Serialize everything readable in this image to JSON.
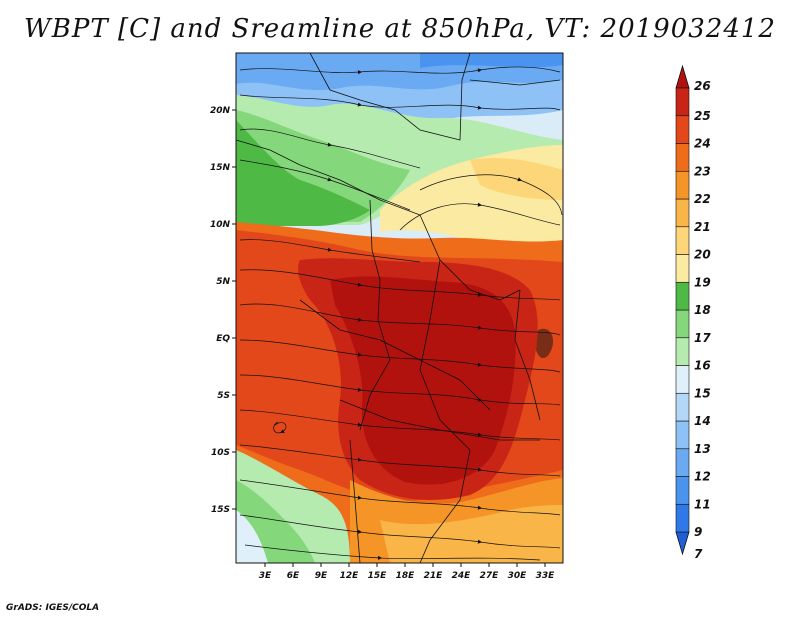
{
  "title": "WBPT [C] and Sreamline at 850hPa, VT: 2019032412",
  "credit": "GrADS: IGES/COLA",
  "map": {
    "latitude_labels": [
      "20N",
      "15N",
      "10N",
      "5N",
      "EQ",
      "5S",
      "10S",
      "15S"
    ],
    "longitude_labels": [
      "3E",
      "6E",
      "9E",
      "12E",
      "15E",
      "18E",
      "21E",
      "24E",
      "27E",
      "30E",
      "33E"
    ],
    "variable": "Wet-bulb potential temperature",
    "units": "C",
    "level": "850hPa",
    "valid_time": "2019032412"
  },
  "colorbar": {
    "levels": [
      "7",
      "9",
      "11",
      "12",
      "13",
      "14",
      "15",
      "16",
      "17",
      "18",
      "19",
      "20",
      "21",
      "22",
      "23",
      "24",
      "25",
      "26"
    ],
    "colors": [
      "#1f5fd6",
      "#2f78e8",
      "#4a94f0",
      "#6aaaf3",
      "#8ec1f5",
      "#b4d7f8",
      "#dff0fb",
      "#b6ebb0",
      "#84d77a",
      "#4fb946",
      "#fbeaa2",
      "#fcd678",
      "#f9b547",
      "#f59427",
      "#ef6c1a",
      "#e2481a",
      "#c82516",
      "#b2120e"
    ]
  }
}
